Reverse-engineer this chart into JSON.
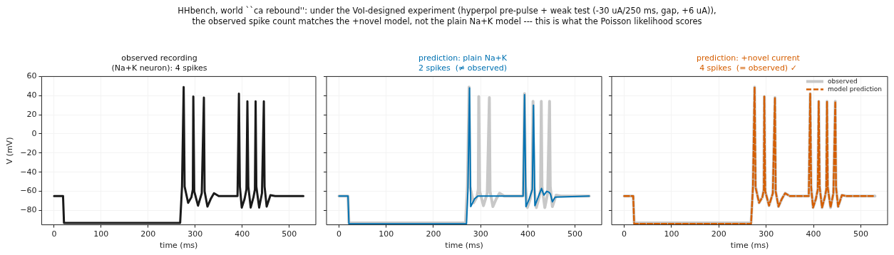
{
  "chart_data": [
    {
      "type": "line",
      "title": "observed recording\n(Na+K neuron): 4 spikes",
      "xlabel": "time (ms)",
      "ylabel": "V (mV)",
      "annotations": [
        "HHbench, world ``ca rebound'': under the VoI-designed experiment (hyperpol pre-pulse + weak test (-30 uA/250 ms, gap, +6 uA)),\nthe observed spike count matches the +novel model, not the plain Na+K model --- this is what the Poisson likelihood scores"
      ],
      "xlim": [
        -26.5,
        556.5
      ],
      "ylim": [
        -95,
        60
      ],
      "xticks": [
        0,
        100,
        200,
        300,
        400,
        500
      ],
      "yticks": [
        -80,
        -60,
        -40,
        -20,
        0,
        20,
        40,
        60
      ],
      "grid": true,
      "x": [
        0,
        19,
        21,
        268,
        272,
        275.5,
        277.5,
        285,
        292,
        295,
        296,
        298,
        306,
        314,
        318.5,
        320,
        326,
        333,
        340,
        350,
        390,
        393,
        395,
        399,
        405,
        409,
        411,
        413,
        418,
        424,
        427,
        428.5,
        430,
        436,
        442,
        446,
        447.5,
        452,
        460,
        470,
        530
      ],
      "series": [
        {
          "color": "#1a1a1a",
          "values": [
            -65,
            -65,
            -93,
            -93,
            -55,
            49,
            -55,
            -72,
            -66,
            -58,
            39,
            -60,
            -75,
            -62,
            38,
            -60,
            -76,
            -68,
            -62,
            -65,
            -65,
            42,
            -55,
            -77,
            -68,
            -58,
            34,
            -55,
            -77,
            -66,
            -58,
            34,
            -55,
            -77,
            -62,
            34,
            -55,
            -76,
            -64,
            -65,
            -65
          ]
        }
      ]
    },
    {
      "type": "line",
      "title": "prediction: plain Na+K\n2 spikes  (≠ observed)",
      "xlabel": "time (ms)",
      "xlim": [
        -26.5,
        556.5
      ],
      "ylim": [
        -95,
        60
      ],
      "xticks": [
        0,
        100,
        200,
        300,
        400,
        500
      ],
      "yticks": [
        -80,
        -60,
        -40,
        -20,
        0,
        20,
        40,
        60
      ],
      "grid": true,
      "tick_labels": "x",
      "x": [
        0,
        19,
        21,
        268,
        272,
        275.5,
        277.5,
        285,
        292,
        295,
        296,
        298,
        306,
        314,
        318.5,
        320,
        326,
        333,
        340,
        350,
        390,
        393,
        395,
        399,
        405,
        409,
        411,
        413,
        418,
        424,
        427,
        428.5,
        430,
        436,
        442,
        446,
        447.5,
        452,
        460,
        470,
        530
      ],
      "series": [
        {
          "color": "#c8c8c8",
          "values": [
            -65,
            -65,
            -93,
            -93,
            -55,
            49,
            -55,
            -72,
            -66,
            -58,
            39,
            -60,
            -75,
            -62,
            38,
            -60,
            -76,
            -68,
            -62,
            -65,
            -65,
            42,
            -55,
            -77,
            -68,
            -58,
            34,
            -55,
            -77,
            -66,
            -58,
            34,
            -55,
            -77,
            -62,
            34,
            -55,
            -76,
            -64,
            -65,
            -65
          ]
        },
        {
          "color": "#0072b2",
          "x": [
            0,
            19,
            21,
            270,
            273,
            276.5,
            279,
            287,
            294,
            390,
            393,
            396,
            403,
            409.5,
            412,
            415,
            422,
            429,
            434,
            440,
            445,
            448,
            452,
            458,
            530
          ],
          "values": [
            -65,
            -65,
            -94,
            -94,
            -60,
            48,
            -76,
            -68,
            -65,
            -65,
            41,
            -76,
            -68,
            -58,
            30,
            -75,
            -66,
            -57,
            -64,
            -60,
            -61,
            -63,
            -71,
            -66,
            -65
          ]
        }
      ]
    },
    {
      "type": "line",
      "title": "prediction: +novel current\n4 spikes  (= observed) ✓",
      "xlabel": "time (ms)",
      "xlim": [
        -26.5,
        556.5
      ],
      "ylim": [
        -95,
        60
      ],
      "xticks": [
        0,
        100,
        200,
        300,
        400,
        500
      ],
      "yticks": [
        -80,
        -60,
        -40,
        -20,
        0,
        20,
        40,
        60
      ],
      "grid": true,
      "tick_labels": "x",
      "legend": "top right",
      "x": [
        0,
        19,
        21,
        268,
        272,
        275.5,
        277.5,
        285,
        292,
        295,
        296,
        298,
        306,
        314,
        318.5,
        320,
        326,
        333,
        340,
        350,
        390,
        393,
        395,
        399,
        405,
        409,
        411,
        413,
        418,
        424,
        427,
        428.5,
        430,
        436,
        442,
        446,
        447.5,
        452,
        460,
        470,
        530
      ],
      "series": [
        {
          "name": "observed",
          "color": "#c8c8c8",
          "values": [
            -65,
            -65,
            -93,
            -93,
            -55,
            49,
            -55,
            -72,
            -66,
            -58,
            39,
            -60,
            -75,
            -62,
            38,
            -60,
            -76,
            -68,
            -62,
            -65,
            -65,
            42,
            -55,
            -77,
            -68,
            -58,
            34,
            -55,
            -77,
            -66,
            -58,
            34,
            -55,
            -77,
            -62,
            34,
            -55,
            -76,
            -64,
            -65,
            -65
          ]
        },
        {
          "name": "model prediction",
          "color": "#d55e00",
          "line_style": "dashed",
          "values": [
            -65,
            -65,
            -94,
            -94,
            -56,
            49,
            -56,
            -72,
            -66,
            -58,
            39,
            -60,
            -75,
            -62,
            38,
            -60,
            -76,
            -68,
            -62,
            -65,
            -65,
            42,
            -56,
            -77,
            -68,
            -58,
            34,
            -56,
            -77,
            -66,
            -58,
            34,
            -56,
            -77,
            -62,
            34,
            -56,
            -76,
            -64,
            -65,
            -65
          ]
        }
      ]
    }
  ]
}
